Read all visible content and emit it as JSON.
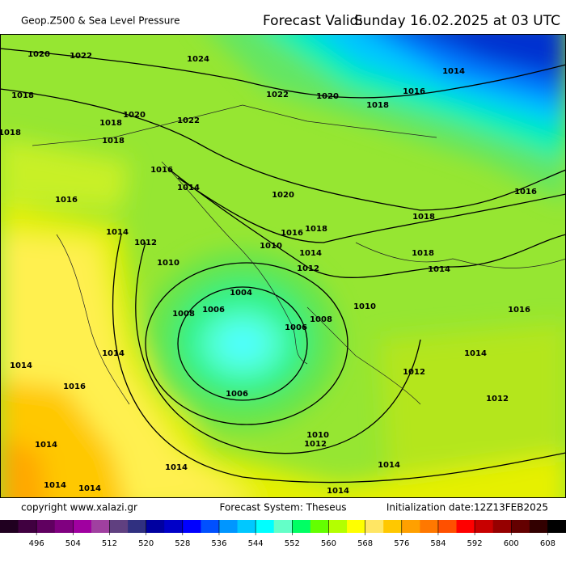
{
  "header": {
    "title": "Geop.Z500 & Sea Level Pressure",
    "valid_label": "Forecast Valid:",
    "valid_time": "Sunday 16.02.2025 at 03 UTC"
  },
  "footer": {
    "copyright": "copyright www.xalazi.gr",
    "system": "Forecast System: Theseus",
    "init": "Initialization date:12Z13FEB2025"
  },
  "isobar_labels": [
    1020,
    1022,
    1024,
    1018,
    1018,
    1018,
    1020,
    1022,
    1018,
    1016,
    1014,
    1016,
    1014,
    1012,
    1010,
    1022,
    1020,
    1018,
    1016,
    1014,
    1020,
    1018,
    1016,
    1018,
    1016,
    1010,
    1014,
    1012,
    1018,
    1014,
    1004,
    1006,
    1008,
    1006,
    1008,
    1010,
    1016,
    1014,
    1014,
    1016,
    1012,
    1014,
    1012,
    1006,
    1010,
    1012,
    1014,
    1014,
    1014,
    1014,
    1014,
    1014
  ],
  "colorbar": {
    "range": [
      488,
      612
    ],
    "ticks": [
      496,
      504,
      512,
      520,
      528,
      536,
      544,
      552,
      560,
      568,
      576,
      584,
      592,
      600,
      608
    ],
    "colors": [
      "#200020",
      "#400040",
      "#600060",
      "#800080",
      "#a000a0",
      "#a040a0",
      "#604080",
      "#303080",
      "#0000a0",
      "#0000c8",
      "#0000ff",
      "#0050ff",
      "#0096ff",
      "#00c8ff",
      "#00ffff",
      "#64ffc8",
      "#00ff64",
      "#64ff00",
      "#b4ff00",
      "#ffff00",
      "#ffe664",
      "#ffc800",
      "#ffa000",
      "#ff7800",
      "#ff5000",
      "#ff0000",
      "#c80000",
      "#960000",
      "#640000",
      "#320000",
      "#000000"
    ]
  }
}
